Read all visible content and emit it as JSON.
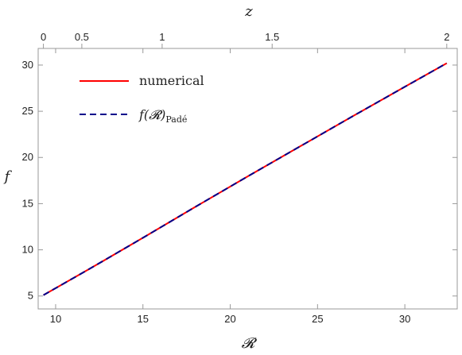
{
  "chart_data": {
    "type": "line",
    "xlabel": "𝓡",
    "ylabel": "f",
    "top_xlabel": "z",
    "xlim": [
      9,
      33
    ],
    "ylim": [
      3.6,
      31.8
    ],
    "x_ticks": [
      10,
      15,
      20,
      25,
      30
    ],
    "y_ticks": [
      5,
      10,
      15,
      20,
      25,
      30
    ],
    "top_axis": {
      "ticks": [
        {
          "label": "0",
          "x": 9.3
        },
        {
          "label": "0.5",
          "x": 11.5
        },
        {
          "label": "1",
          "x": 16.1
        },
        {
          "label": "1.5",
          "x": 22.4
        },
        {
          "label": "2",
          "x": 32.4
        }
      ]
    },
    "legend_position": "top-left",
    "grid": false,
    "series": [
      {
        "name": "numerical",
        "color": "#ff0000",
        "style": "solid",
        "x": [
          9.3,
          12,
          15,
          18,
          21,
          24,
          27,
          30,
          32.4
        ],
        "y": [
          5.1,
          8.0,
          11.3,
          14.65,
          17.95,
          21.2,
          24.45,
          27.65,
          30.2
        ]
      },
      {
        "name": "f(𝓡)",
        "name_subscript": "Padé",
        "color": "#00008b",
        "style": "dashed",
        "x": [
          9.3,
          12,
          15,
          18,
          21,
          24,
          27,
          30,
          32.4
        ],
        "y": [
          5.1,
          8.0,
          11.3,
          14.65,
          17.95,
          21.2,
          24.45,
          27.65,
          30.2
        ]
      }
    ]
  }
}
